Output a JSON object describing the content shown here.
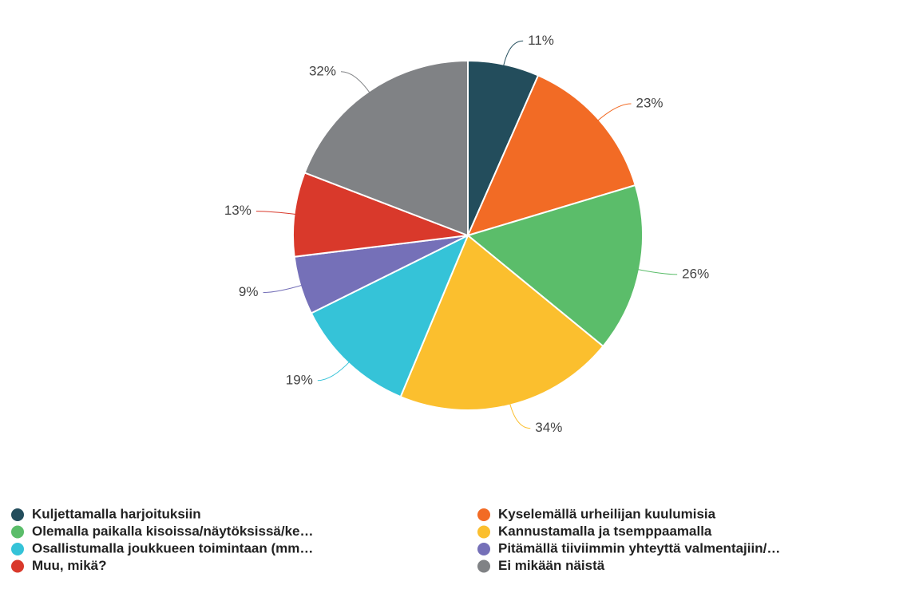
{
  "chart_data": {
    "type": "pie",
    "categories": [
      "Kuljettamalla harjoituksiin",
      "Kyselemällä urheilijan kuulumisia",
      "Olemalla paikalla kisoissa/näytöksissä/ke…",
      "Kannustamalla ja tsemppaamalla",
      "Osallistumalla joukkueen toimintaan (mm…",
      "Pitämällä tiiviimmin yhteyttä valmentajiin/…",
      "Muu, mikä?",
      "Ei mikään näistä"
    ],
    "values": [
      11,
      23,
      26,
      34,
      19,
      9,
      13,
      32
    ],
    "value_labels": [
      "11%",
      "23%",
      "26%",
      "34%",
      "19%",
      "9%",
      "13%",
      "32%"
    ],
    "colors": [
      "#234d5c",
      "#f26b25",
      "#5bbd6a",
      "#fbbf2e",
      "#35c3d8",
      "#7570b8",
      "#d9392b",
      "#808285"
    ]
  }
}
